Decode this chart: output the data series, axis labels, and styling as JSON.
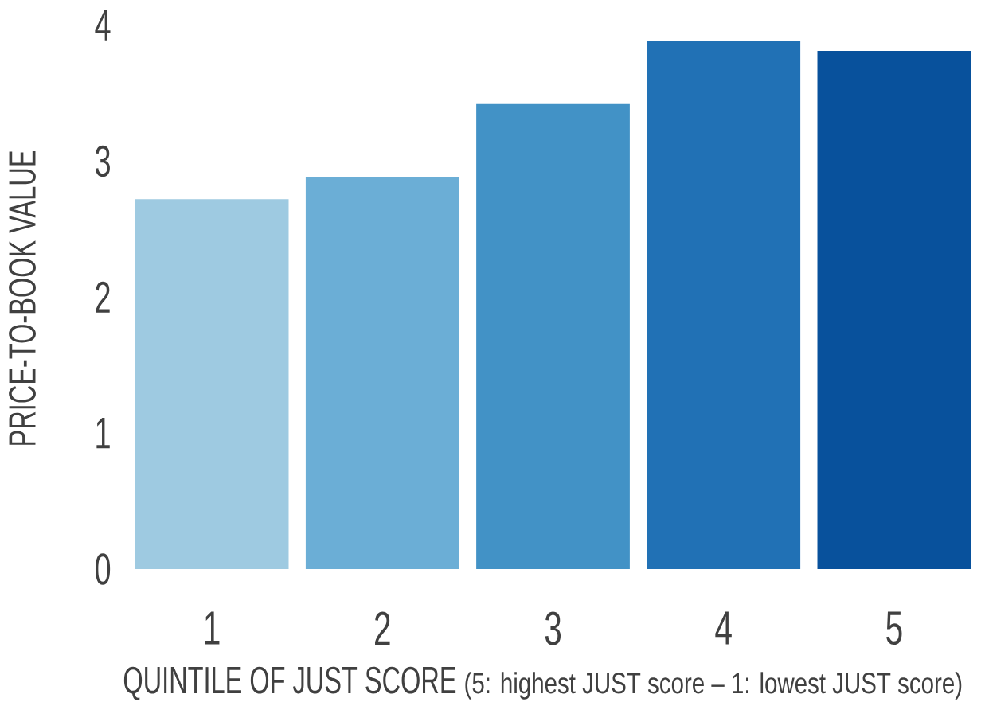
{
  "chart_data": {
    "type": "bar",
    "categories": [
      "1",
      "2",
      "3",
      "4",
      "5"
    ],
    "values": [
      2.72,
      2.88,
      3.42,
      3.88,
      3.81
    ],
    "colors": [
      "#9ecae1",
      "#6baed6",
      "#4292c6",
      "#2171b5",
      "#08519c"
    ],
    "xlabel": "QUINTILE OF JUST SCORE",
    "ylabel": "PRICE-TO-BOOK VALUE",
    "annotations": [
      "(5: highest JUST score – 1: lowest JUST score)"
    ],
    "ylim": [
      0,
      4
    ],
    "yticks": [
      0,
      1,
      2,
      3,
      4
    ]
  }
}
